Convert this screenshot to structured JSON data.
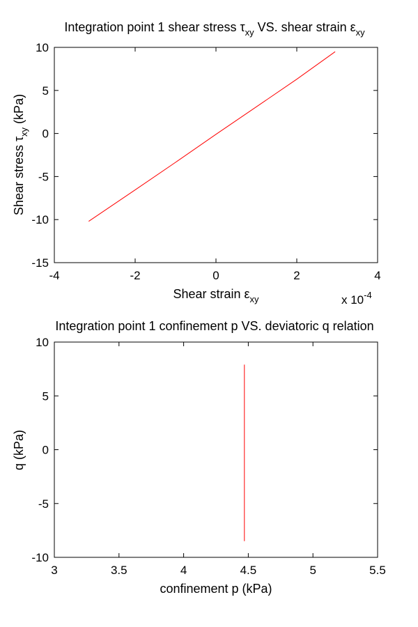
{
  "chart_data": [
    {
      "type": "line",
      "title": {
        "lead": "Integration point 1 shear stress τ",
        "sub1": "xy",
        "mid": " VS. shear strain ε",
        "sub2": "xy"
      },
      "xlabel": {
        "lead": "Shear strain ε",
        "sub": "xy"
      },
      "ylabel": {
        "lead": "Shear stress τ",
        "sub": "xy",
        "tail": " (kPa)"
      },
      "x_exponent": {
        "base": "x 10",
        "exp": "-4"
      },
      "xlim": [
        -4,
        4
      ],
      "ylim": [
        -15,
        10
      ],
      "xticks": [
        -4,
        -2,
        0,
        2,
        4
      ],
      "xtick_labels": [
        "-4",
        "-2",
        "0",
        "2",
        "4"
      ],
      "yticks": [
        -15,
        -10,
        -5,
        0,
        5,
        10
      ],
      "ytick_labels": [
        "-15",
        "-10",
        "-5",
        "0",
        "5",
        "10"
      ],
      "grid": false,
      "series": [
        {
          "color": "#ff0000",
          "x": [
            -3.15,
            -2.0,
            -1.0,
            0.0,
            1.0,
            2.0,
            2.95
          ],
          "y": [
            -10.2,
            -6.55,
            -3.35,
            -0.1,
            3.1,
            6.3,
            9.5
          ]
        }
      ]
    },
    {
      "type": "line",
      "title": "Integration point 1 confinement p VS. deviatoric q relation",
      "xlabel": "confinement p (kPa)",
      "ylabel": "q (kPa)",
      "xlim": [
        3,
        5.5
      ],
      "ylim": [
        -10,
        10
      ],
      "xticks": [
        3,
        3.5,
        4,
        4.5,
        5,
        5.5
      ],
      "xtick_labels": [
        "3",
        "3.5",
        "4",
        "4.5",
        "5",
        "5.5"
      ],
      "yticks": [
        -10,
        -5,
        0,
        5,
        10
      ],
      "ytick_labels": [
        "-10",
        "-5",
        "0",
        "5",
        "10"
      ],
      "grid": false,
      "series": [
        {
          "color": "#ff0000",
          "x": [
            4.47,
            4.47
          ],
          "y": [
            -8.5,
            7.9
          ]
        }
      ]
    }
  ]
}
